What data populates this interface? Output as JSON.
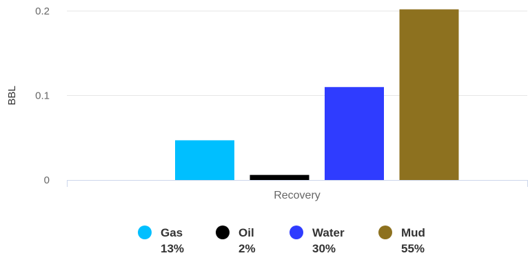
{
  "chart_data": {
    "type": "bar",
    "title": "",
    "xlabel": "",
    "ylabel": "BBL",
    "categories": [
      "Recovery"
    ],
    "ylim": [
      0,
      0.2
    ],
    "yticks": [
      0,
      0.1,
      0.2
    ],
    "ytick_labels": [
      "0",
      "0.1",
      "0.2"
    ],
    "grid": true,
    "legend_position": "bottom",
    "series": [
      {
        "name": "Gas",
        "values": [
          0.047
        ],
        "color": "#00bfff",
        "percent": "13%"
      },
      {
        "name": "Oil",
        "values": [
          0.006
        ],
        "color": "#000000",
        "percent": "2%"
      },
      {
        "name": "Water",
        "values": [
          0.11
        ],
        "color": "#2f3cff",
        "percent": "30%"
      },
      {
        "name": "Mud",
        "values": [
          0.202
        ],
        "color": "#8d711f",
        "percent": "55%"
      }
    ]
  }
}
